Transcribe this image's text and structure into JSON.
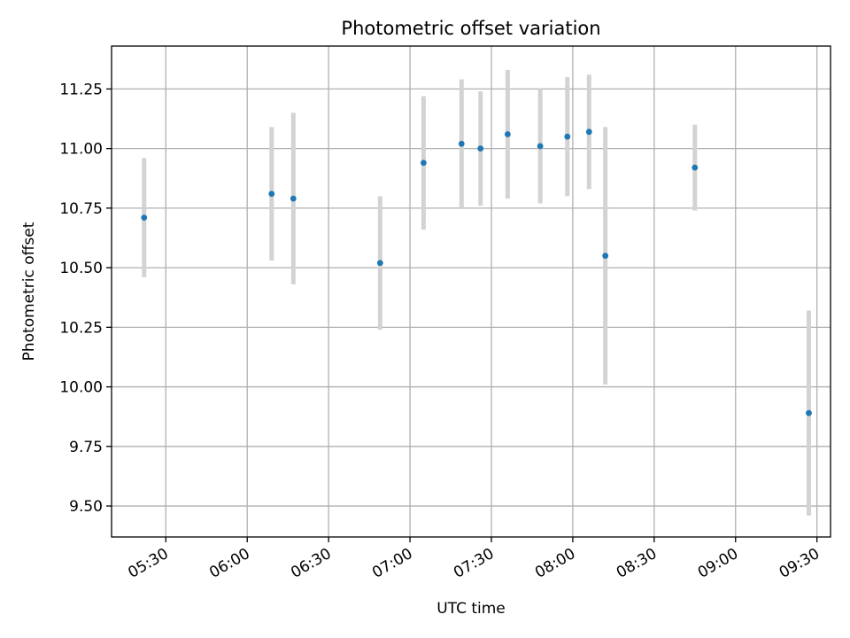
{
  "chart_data": {
    "type": "scatter",
    "title": "Photometric offset variation",
    "xlabel": "UTC time",
    "ylabel": "Photometric offset",
    "x_tick_labels": [
      "05:30",
      "06:00",
      "06:30",
      "07:00",
      "07:30",
      "08:00",
      "08:30",
      "09:00",
      "09:30"
    ],
    "y_tick_labels": [
      "9.50",
      "9.75",
      "10.00",
      "10.25",
      "10.50",
      "10.75",
      "11.00",
      "11.25"
    ],
    "xlim": [
      "05:10",
      "09:35"
    ],
    "ylim": [
      9.37,
      11.43
    ],
    "grid": true,
    "points": [
      {
        "x": "05:22",
        "y": 10.71,
        "err": 0.25
      },
      {
        "x": "06:09",
        "y": 10.81,
        "err": 0.28
      },
      {
        "x": "06:17",
        "y": 10.79,
        "err": 0.36
      },
      {
        "x": "06:49",
        "y": 10.52,
        "err": 0.28
      },
      {
        "x": "07:05",
        "y": 10.94,
        "err": 0.28
      },
      {
        "x": "07:19",
        "y": 11.02,
        "err": 0.27
      },
      {
        "x": "07:26",
        "y": 11.0,
        "err": 0.24
      },
      {
        "x": "07:36",
        "y": 11.06,
        "err": 0.27
      },
      {
        "x": "07:48",
        "y": 11.01,
        "err": 0.24
      },
      {
        "x": "07:58",
        "y": 11.05,
        "err": 0.25
      },
      {
        "x": "08:06",
        "y": 11.07,
        "err": 0.24
      },
      {
        "x": "08:12",
        "y": 10.55,
        "err": 0.54
      },
      {
        "x": "08:45",
        "y": 10.92,
        "err": 0.18
      },
      {
        "x": "09:27",
        "y": 9.89,
        "err": 0.43
      }
    ],
    "point_color": "#1f77b4",
    "errorbar_color": "#d3d3d3"
  }
}
